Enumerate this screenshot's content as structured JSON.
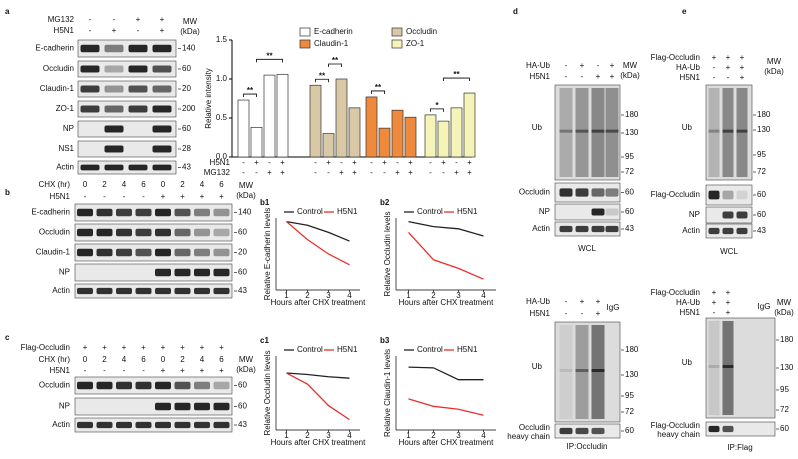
{
  "panel_labels": [
    "a",
    "b",
    "c",
    "d",
    "e"
  ],
  "blots": {
    "a": {
      "headers": [
        {
          "name": "MG132",
          "signs": [
            "-",
            "-",
            "+",
            "+"
          ]
        },
        {
          "name": "H5N1",
          "signs": [
            "-",
            "+",
            "-",
            "+"
          ]
        }
      ],
      "mw_title": "MW",
      "mw_unit": "(kDa)",
      "rows": [
        {
          "name": "E-cadherin",
          "mw": 140
        },
        {
          "name": "Occludin",
          "mw": 60
        },
        {
          "name": "Claudin-1",
          "mw": 20
        },
        {
          "name": "ZO-1",
          "mw": 200
        },
        {
          "name": "NP",
          "mw": 60
        },
        {
          "name": "NS1",
          "mw": 28
        },
        {
          "name": "Actin",
          "mw": 43
        }
      ]
    },
    "b": {
      "headers": [
        {
          "name": "CHX (hr)",
          "signs": [
            "0",
            "2",
            "4",
            "6",
            "0",
            "2",
            "4",
            "6"
          ]
        },
        {
          "name": "H5N1",
          "signs": [
            "-",
            "-",
            "-",
            "-",
            "+",
            "+",
            "+",
            "+"
          ]
        }
      ],
      "mw_title": "MW",
      "mw_unit": "(kDa)",
      "rows": [
        {
          "name": "E-cadherin",
          "mw": 140
        },
        {
          "name": "Occludin",
          "mw": 60
        },
        {
          "name": "Claudin-1",
          "mw": 20
        },
        {
          "name": "NP",
          "mw": 60
        },
        {
          "name": "Actin",
          "mw": 43
        }
      ]
    },
    "c": {
      "headers": [
        {
          "name": "Flag-Occludin",
          "signs": [
            "+",
            "+",
            "+",
            "+",
            "+",
            "+",
            "+",
            "+"
          ]
        },
        {
          "name": "CHX (hr)",
          "signs": [
            "0",
            "2",
            "4",
            "6",
            "0",
            "2",
            "4",
            "6"
          ]
        },
        {
          "name": "H5N1",
          "signs": [
            "-",
            "-",
            "-",
            "-",
            "+",
            "+",
            "+",
            "+"
          ]
        }
      ],
      "mw_title": "MW",
      "mw_unit": "(kDa)",
      "rows": [
        {
          "name": "Occludin",
          "mw": 60
        },
        {
          "name": "NP",
          "mw": 60
        },
        {
          "name": "Actin",
          "mw": 43
        }
      ]
    },
    "d_wcl": {
      "headers": [
        {
          "name": "HA-Ub",
          "signs": [
            "-",
            "+",
            "-",
            "+"
          ]
        },
        {
          "name": "H5N1",
          "signs": [
            "-",
            "-",
            "+",
            "+"
          ]
        }
      ],
      "mw_title": "MW",
      "mw_unit": "(kDa)",
      "ub": {
        "label": "Ub",
        "mw": [
          180,
          130,
          95,
          72
        ]
      },
      "rows": [
        {
          "name": "Occludin",
          "mw": 60
        },
        {
          "name": "NP",
          "mw": 60
        },
        {
          "name": "Actin",
          "mw": 43
        }
      ],
      "footer": "WCL"
    },
    "d_ip": {
      "headers": [
        {
          "name": "HA-Ub",
          "signs": [
            "-",
            "+",
            "+"
          ]
        },
        {
          "name": "H5N1",
          "signs": [
            "-",
            "-",
            "+"
          ]
        }
      ],
      "igg": "IgG",
      "ub": {
        "label": "Ub",
        "mw": [
          180,
          130,
          95,
          72
        ]
      },
      "rows": [
        {
          "name": "Occludin",
          "sub": "heavy chain",
          "mw": 60
        }
      ],
      "footer": "IP:Occludin"
    },
    "e_wcl": {
      "headers": [
        {
          "name": "Flag-Occludin",
          "signs": [
            "+",
            "+",
            "+"
          ]
        },
        {
          "name": "HA-Ub",
          "signs": [
            "-",
            "+",
            "+"
          ]
        },
        {
          "name": "H5N1",
          "signs": [
            "-",
            "-",
            "+"
          ]
        }
      ],
      "mw_title": "MW",
      "mw_unit": "(kDa)",
      "ub": {
        "label": "Ub",
        "mw": [
          180,
          130,
          95,
          72
        ]
      },
      "rows": [
        {
          "name": "Flag-Occludin",
          "mw": 60
        },
        {
          "name": "NP",
          "mw": 60
        },
        {
          "name": "Actin",
          "mw": 43
        }
      ],
      "footer": "WCL"
    },
    "e_ip": {
      "headers": [
        {
          "name": "Flag-Occludin",
          "signs": [
            "+",
            "+"
          ]
        },
        {
          "name": "HA-Ub",
          "signs": [
            "+",
            "+"
          ]
        },
        {
          "name": "H5N1",
          "signs": [
            "-",
            "+"
          ]
        }
      ],
      "igg": "IgG",
      "mw_title": "MW",
      "mw_unit": "(kDa)",
      "ub": {
        "label": "Ub",
        "mw": [
          180,
          130,
          95,
          72
        ]
      },
      "rows": [
        {
          "name": "Flag-Occludin",
          "sub": "heavy chain",
          "mw": 60
        }
      ],
      "footer": "IP:Flag"
    }
  },
  "chart_data": [
    {
      "type": "bar",
      "ylabel": "Relative intensity",
      "ylim": [
        0,
        1.5
      ],
      "yticks": [
        {
          "value": 0,
          "label": "0.0"
        },
        {
          "value": 0.5,
          "label": "0.5"
        },
        {
          "value": 1,
          "label": "1.0"
        },
        {
          "value": 1.5,
          "label": "1.5"
        }
      ],
      "series": [
        {
          "name": "E-cadherin",
          "color": "#ffffff",
          "values": [
            0.73,
            0.38,
            1.05,
            1.06
          ],
          "significance": [
            {
              "text": "**",
              "pair": [
                0,
                1
              ]
            },
            {
              "text": "**",
              "pair": [
                1,
                3
              ]
            }
          ]
        },
        {
          "name": "Occludin",
          "color": "#d8c8a6",
          "values": [
            0.92,
            0.3,
            1.0,
            0.63
          ],
          "significance": [
            {
              "text": "**",
              "pair": [
                0,
                1
              ]
            },
            {
              "text": "**",
              "pair": [
                1,
                2
              ]
            }
          ]
        },
        {
          "name": "Claudin-1",
          "color": "#ef8a3c",
          "values": [
            0.77,
            0.37,
            0.6,
            0.51
          ],
          "significance": [
            {
              "text": "**",
              "pair": [
                0,
                1
              ]
            }
          ]
        },
        {
          "name": "ZO-1",
          "color": "#f4f4b8",
          "values": [
            0.54,
            0.46,
            0.63,
            0.82
          ],
          "significance": [
            {
              "text": "*",
              "pair": [
                0,
                1
              ]
            },
            {
              "text": "**",
              "pair": [
                1,
                3
              ]
            }
          ]
        }
      ],
      "conditions": [
        {
          "name": "H5N1",
          "signs": [
            "-",
            "+",
            "-",
            "+"
          ]
        },
        {
          "name": "MG132",
          "signs": [
            "-",
            "-",
            "+",
            "+"
          ]
        }
      ]
    },
    {
      "type": "line",
      "panel_label": "b1",
      "ylabel": "Relative E-cadherin levels",
      "xlabel": "Hours after CHX treatment",
      "x": [
        1,
        2,
        3,
        4
      ],
      "xlim": [
        0.5,
        4.5
      ],
      "xticks": [
        1,
        2,
        3,
        4
      ],
      "ylim": [
        0,
        1
      ],
      "series": [
        {
          "name": "Control",
          "color": "#222222",
          "values": [
            0.95,
            0.9,
            0.8,
            0.68
          ]
        },
        {
          "name": "H5N1",
          "color": "#e8302a",
          "values": [
            0.95,
            0.7,
            0.5,
            0.35
          ]
        }
      ]
    },
    {
      "type": "line",
      "panel_label": "b2",
      "ylabel": "Relative Occludin levels",
      "xlabel": "Hours after CHX treatment",
      "x": [
        1,
        2,
        3,
        4
      ],
      "xlim": [
        0.5,
        4.5
      ],
      "xticks": [
        1,
        2,
        3,
        4
      ],
      "ylim": [
        0,
        1
      ],
      "series": [
        {
          "name": "Control",
          "color": "#222222",
          "values": [
            0.95,
            0.88,
            0.85,
            0.75
          ]
        },
        {
          "name": "H5N1",
          "color": "#e8302a",
          "values": [
            0.8,
            0.42,
            0.3,
            0.15
          ]
        }
      ]
    },
    {
      "type": "line",
      "panel_label": "c1",
      "ylabel": "Relative Occludin levels",
      "xlabel": "Hours after CHX treatment",
      "x": [
        1,
        2,
        3,
        4
      ],
      "xlim": [
        0.5,
        4.5
      ],
      "xticks": [
        1,
        2,
        3,
        4
      ],
      "ylim": [
        0,
        1
      ],
      "series": [
        {
          "name": "Control",
          "color": "#222222",
          "values": [
            0.77,
            0.75,
            0.72,
            0.7
          ]
        },
        {
          "name": "H5N1",
          "color": "#e8302a",
          "values": [
            0.77,
            0.62,
            0.33,
            0.14
          ]
        }
      ]
    },
    {
      "type": "line",
      "panel_label": "b3",
      "ylabel": "Relative Claudin-1 levels",
      "xlabel": "Hours after CHX treatment",
      "x": [
        1,
        2,
        3,
        4
      ],
      "xlim": [
        0.5,
        4.5
      ],
      "xticks": [
        1,
        2,
        3,
        4
      ],
      "ylim": [
        0,
        1
      ],
      "series": [
        {
          "name": "Control",
          "color": "#222222",
          "values": [
            0.85,
            0.84,
            0.68,
            0.68
          ]
        },
        {
          "name": "H5N1",
          "color": "#e8302a",
          "values": [
            0.42,
            0.32,
            0.28,
            0.2
          ]
        }
      ]
    }
  ]
}
